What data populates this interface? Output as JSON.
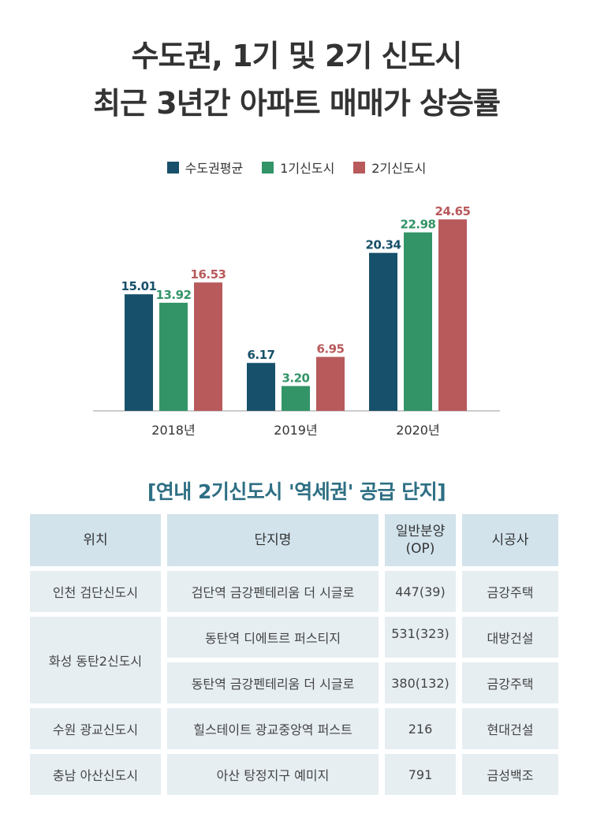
{
  "title": {
    "line1": "수도권, 1기 및 2기 신도시",
    "line2": "최근 3년간 아파트 매매가 상승률"
  },
  "legend": [
    {
      "label": "수도권평균",
      "color": "#17506a"
    },
    {
      "label": "1기신도시",
      "color": "#339468"
    },
    {
      "label": "2기신도시",
      "color": "#b85a5c"
    }
  ],
  "chart_data": {
    "type": "bar",
    "categories": [
      "2018년",
      "2019년",
      "2020년"
    ],
    "series": [
      {
        "name": "수도권평균",
        "values": [
          15.01,
          6.17,
          20.34
        ],
        "labels": [
          "15.01",
          "6.17",
          "20.34"
        ]
      },
      {
        "name": "1기신도시",
        "values": [
          13.92,
          3.2,
          22.98
        ],
        "labels": [
          "13.92",
          "3.20",
          "22.98"
        ]
      },
      {
        "name": "2기신도시",
        "values": [
          16.53,
          6.95,
          24.65
        ],
        "labels": [
          "16.53",
          "6.95",
          "24.65"
        ]
      }
    ],
    "title": "",
    "xlabel": "",
    "ylabel": "",
    "ylim": [
      0,
      25
    ],
    "grid": false,
    "legend_position": "top"
  },
  "table": {
    "title": "[연내 2기신도시 '역세권' 공급 단지]",
    "headers": {
      "location": "위치",
      "complex": "단지명",
      "units_line1": "일반분양",
      "units_line2": "(OP)",
      "builder": "시공사"
    },
    "rows": [
      {
        "location": "인천 검단신도시",
        "complex": "검단역 금강펜테리움 더 시글로",
        "units": "447(39)",
        "builder": "금강주택"
      },
      {
        "location": "화성 동탄2신도시",
        "complex": "동탄역 디에트르 퍼스티지",
        "units": "531(323)",
        "builder": "대방건설"
      },
      {
        "location": "",
        "complex": "동탄역 금강펜테리움 더 시글로",
        "units": "380(132)",
        "builder": "금강주택"
      },
      {
        "location": "수원 광교신도시",
        "complex": "힐스테이트 광교중앙역 퍼스트",
        "units": "216",
        "builder": "현대건설"
      },
      {
        "location": "충남 아산신도시",
        "complex": "아산 탕정지구 예미지",
        "units": "791",
        "builder": "금성백조"
      }
    ]
  }
}
